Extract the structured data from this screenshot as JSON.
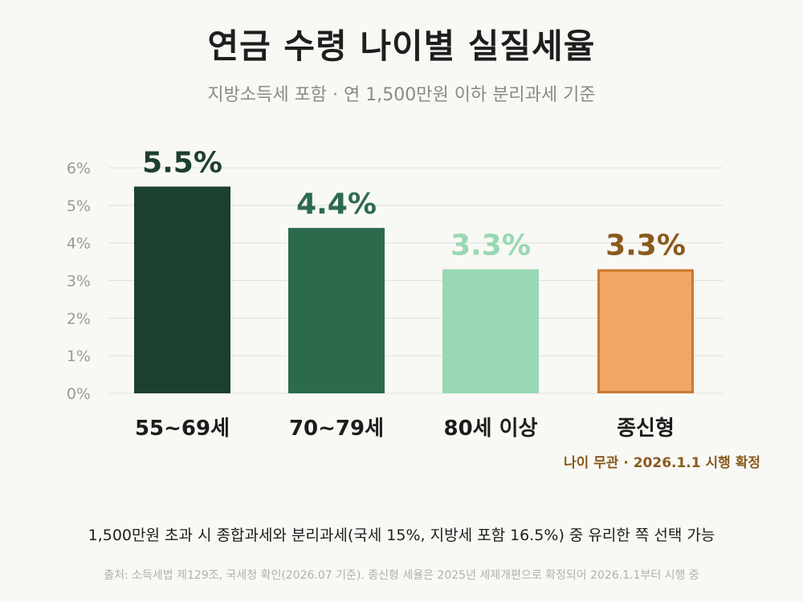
{
  "title": "연금 수령 나이별 실질세율",
  "subtitle": "지방소득세 포함 · 연 1,500만원 이하 분리과세 기준",
  "chart_data": {
    "type": "bar",
    "categories": [
      "55~69세",
      "70~79세",
      "80세 이상",
      "종신형"
    ],
    "values": [
      5.5,
      4.4,
      3.3,
      3.3
    ],
    "value_labels": [
      "5.5%",
      "4.4%",
      "3.3%",
      "3.3%"
    ],
    "yticks": [
      "0%",
      "1%",
      "2%",
      "3%",
      "4%",
      "5%",
      "6%"
    ],
    "ylim": [
      0,
      6
    ],
    "grid": true,
    "bar_colors": [
      "#1c4030",
      "#2c6a4e",
      "#98d8b4",
      "#f2a666"
    ],
    "bar_stroke": [
      null,
      null,
      null,
      "#c9782e"
    ],
    "label_colors": [
      "#1c4030",
      "#2c6a4e",
      "#98d8b4",
      "#8a5a1e"
    ],
    "annotation": "나이 무관 · 2026.1.1 시행 확정",
    "annotation_color": "#8a5a1e"
  },
  "footnote": "1,500만원 초과 시 종합과세와 분리과세(국세 15%, 지방세 포함 16.5%) 중 유리한 쪽 선택 가능",
  "source": "출처: 소득세법 제129조, 국세청 확인(2026.07 기준). 종신형 세율은 2025년 세제개편으로 확정되어 2026.1.1부터 시행 중"
}
